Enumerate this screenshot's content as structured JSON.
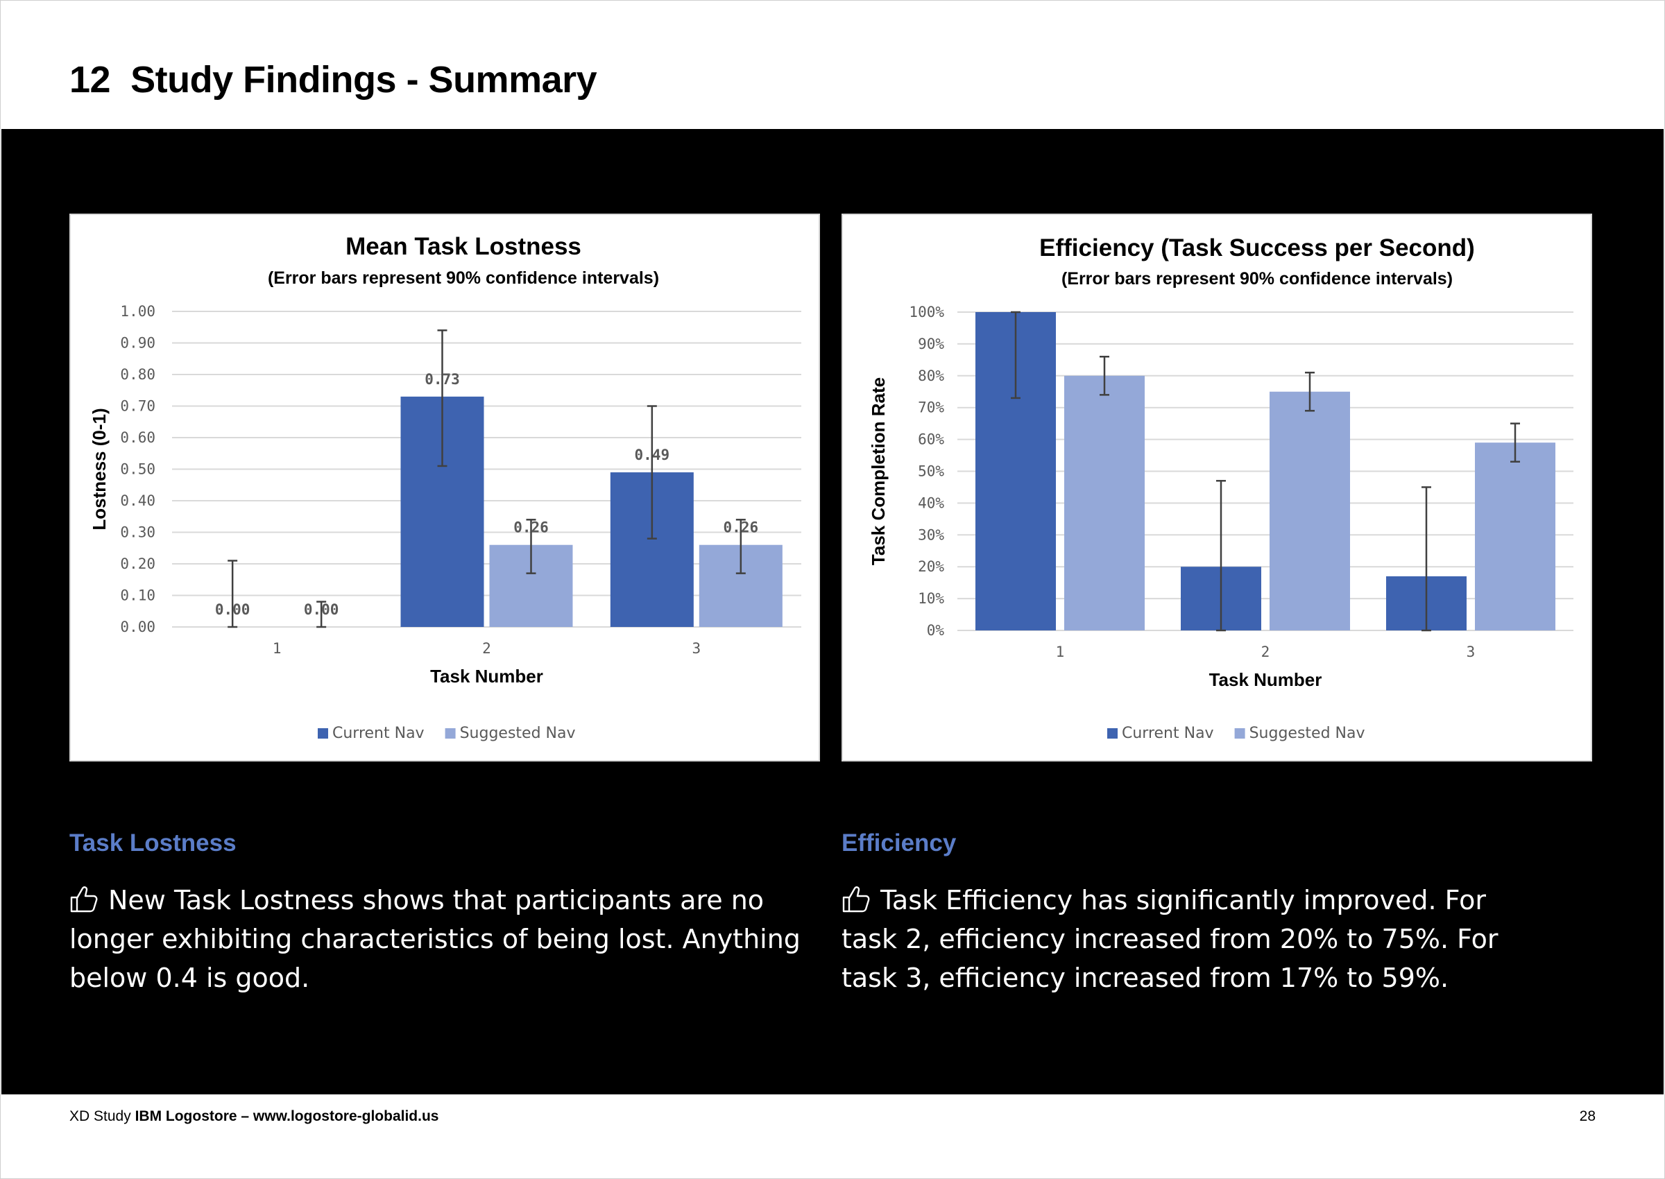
{
  "page": {
    "section_number": "12",
    "title": "Study Findings - Summary"
  },
  "colors": {
    "current_nav": "#3e63b0",
    "suggested_nav": "#94a8d8",
    "heading_accent": "#5b7dc8",
    "panel_background": "#000000"
  },
  "chart_data": [
    {
      "type": "bar",
      "title": "Mean Task Lostness",
      "subtitle": "(Error bars represent 90% confidence intervals)",
      "xlabel": "Task Number",
      "ylabel": "Lostness (0-1)",
      "categories": [
        "1",
        "2",
        "3"
      ],
      "ylim": [
        0,
        1
      ],
      "yticks": [
        "0.00",
        "0.10",
        "0.20",
        "0.30",
        "0.40",
        "0.50",
        "0.60",
        "0.70",
        "0.80",
        "0.90",
        "1.00"
      ],
      "series": [
        {
          "name": "Current Nav",
          "values": [
            0.0,
            0.73,
            0.49
          ],
          "labels": [
            "0.00",
            "0.73",
            "0.49"
          ],
          "error_low": [
            0.0,
            0.51,
            0.28
          ],
          "error_high": [
            0.21,
            0.94,
            0.7
          ]
        },
        {
          "name": "Suggested Nav",
          "values": [
            0.0,
            0.26,
            0.26
          ],
          "labels": [
            "0.00",
            "0.26",
            "0.26"
          ],
          "error_low": [
            0.0,
            0.17,
            0.17
          ],
          "error_high": [
            0.08,
            0.34,
            0.34
          ]
        }
      ],
      "grid": true,
      "legend_position": "bottom"
    },
    {
      "type": "bar",
      "title": "Efficiency (Task Success per Second)",
      "subtitle": "(Error bars represent 90% confidence intervals)",
      "xlabel": "Task Number",
      "ylabel": "Task Completion Rate",
      "categories": [
        "1",
        "2",
        "3"
      ],
      "ylim": [
        0,
        100
      ],
      "yticks": [
        "0%",
        "10%",
        "20%",
        "30%",
        "40%",
        "50%",
        "60%",
        "70%",
        "80%",
        "90%",
        "100%"
      ],
      "series": [
        {
          "name": "Current Nav",
          "values": [
            100,
            20,
            17
          ],
          "error_low": [
            73,
            0,
            0
          ],
          "error_high": [
            100,
            47,
            45
          ]
        },
        {
          "name": "Suggested Nav",
          "values": [
            80,
            75,
            59
          ],
          "error_low": [
            74,
            69,
            53
          ],
          "error_high": [
            86,
            81,
            65
          ]
        }
      ],
      "grid": true,
      "legend_position": "bottom"
    }
  ],
  "sections": {
    "lostness": {
      "heading": "Task Lostness",
      "body": "New Task Lostness shows that participants are no longer exhibiting characteristics of being lost. Anything below 0.4 is good."
    },
    "efficiency": {
      "heading": "Efficiency",
      "body": "Task Efficiency has significantly improved. For task 2,  efficiency increased from 20% to 75%. For task 3, efficiency increased from 17% to 59%."
    }
  },
  "footer": {
    "study_prefix": "XD Study",
    "study_name": "IBM Logostore – www.logostore-globalid.us",
    "page_number": "28"
  }
}
